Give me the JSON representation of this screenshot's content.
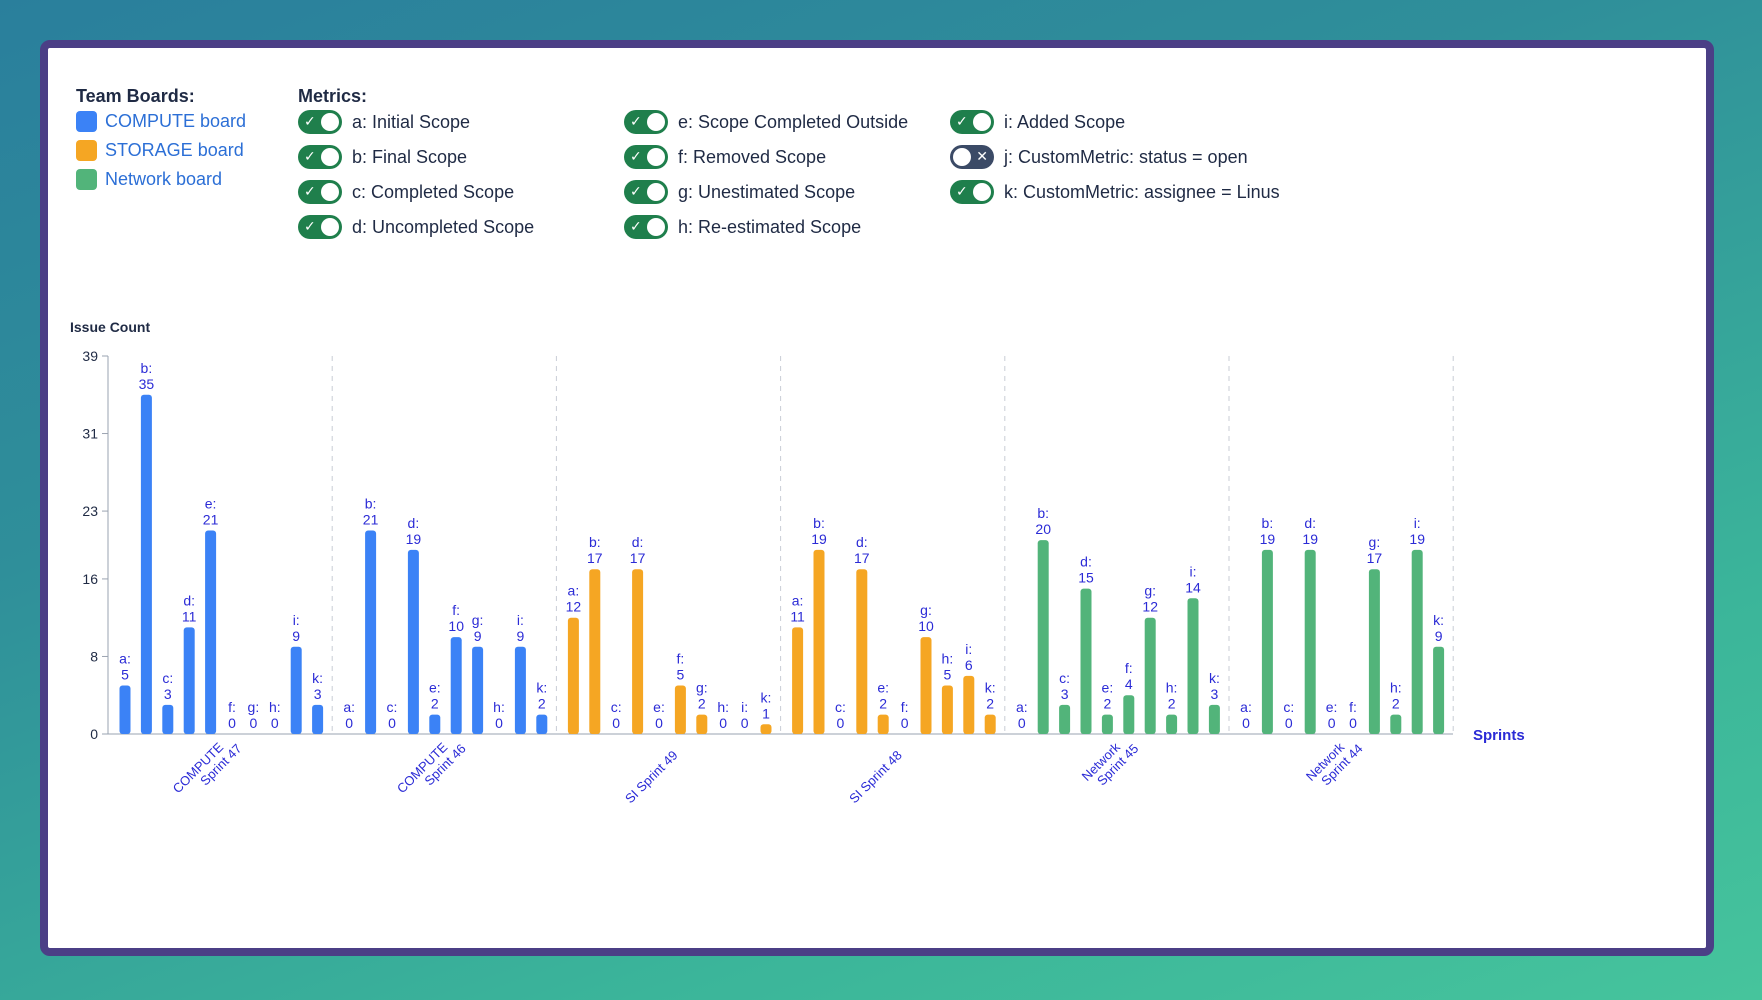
{
  "legend": {
    "boards_header": "Team Boards:",
    "boards": [
      {
        "label": "COMPUTE board",
        "color": "#3b82f6"
      },
      {
        "label": "STORAGE board",
        "color": "#f5a623"
      },
      {
        "label": "Network board",
        "color": "#52b47a"
      }
    ],
    "metrics_header": "Metrics:",
    "metrics": [
      {
        "label": "a: Initial Scope",
        "on": true
      },
      {
        "label": "b: Final Scope",
        "on": true
      },
      {
        "label": "c: Completed Scope",
        "on": true
      },
      {
        "label": "d: Uncompleted Scope",
        "on": true
      },
      {
        "label": "e: Scope Completed Outside",
        "on": true
      },
      {
        "label": "f: Removed Scope",
        "on": true
      },
      {
        "label": "g: Unestimated Scope",
        "on": true
      },
      {
        "label": "h: Re-estimated Scope",
        "on": true
      },
      {
        "label": "i: Added Scope",
        "on": true
      },
      {
        "label": "j: CustomMetric: status = open",
        "on": false
      },
      {
        "label": "k: CustomMetric: assignee = Linus",
        "on": true
      }
    ]
  },
  "chart_data": {
    "type": "bar",
    "ylabel": "Issue Count",
    "xlabel": "Sprints",
    "yticks": [
      0,
      8,
      16,
      23,
      31,
      39
    ],
    "ylim": [
      0,
      39
    ],
    "grid": "vertical dashed separators between sprints",
    "metric_keys": [
      "a",
      "b",
      "c",
      "d",
      "e",
      "f",
      "g",
      "h",
      "i",
      "k"
    ],
    "groups": [
      {
        "sprint": "COMPUTE Sprint 47",
        "board": "COMPUTE board",
        "bars": [
          {
            "key": "a",
            "value": 5
          },
          {
            "key": "b",
            "value": 35
          },
          {
            "key": "c",
            "value": 3
          },
          {
            "key": "d",
            "value": 11
          },
          {
            "key": "e",
            "value": 21
          },
          {
            "key": "f",
            "value": 0
          },
          {
            "key": "g",
            "value": 0
          },
          {
            "key": "h",
            "value": 0
          },
          {
            "key": "i",
            "value": 9
          },
          {
            "key": "k",
            "value": 3
          }
        ]
      },
      {
        "sprint": "COMPUTE Sprint 46",
        "board": "COMPUTE board",
        "bars": [
          {
            "key": "a",
            "value": 0
          },
          {
            "key": "b",
            "value": 21
          },
          {
            "key": "c",
            "value": 0
          },
          {
            "key": "d",
            "value": 19
          },
          {
            "key": "e",
            "value": 2
          },
          {
            "key": "f",
            "value": 10
          },
          {
            "key": "g",
            "value": 9
          },
          {
            "key": "h",
            "value": 0
          },
          {
            "key": "i",
            "value": 9
          },
          {
            "key": "k",
            "value": 2
          }
        ]
      },
      {
        "sprint": "SI Sprint 49",
        "board": "STORAGE board",
        "bars": [
          {
            "key": "a",
            "value": 12
          },
          {
            "key": "b",
            "value": 17
          },
          {
            "key": "c",
            "value": 0
          },
          {
            "key": "d",
            "value": 17
          },
          {
            "key": "e",
            "value": 0
          },
          {
            "key": "f",
            "value": 5
          },
          {
            "key": "g",
            "value": 2
          },
          {
            "key": "h",
            "value": 0
          },
          {
            "key": "i",
            "value": 0
          },
          {
            "key": "k",
            "value": 1
          }
        ]
      },
      {
        "sprint": "SI Sprint 48",
        "board": "STORAGE board",
        "bars": [
          {
            "key": "a",
            "value": 11
          },
          {
            "key": "b",
            "value": 19
          },
          {
            "key": "c",
            "value": 0
          },
          {
            "key": "d",
            "value": 17
          },
          {
            "key": "e",
            "value": 2
          },
          {
            "key": "f",
            "value": 0
          },
          {
            "key": "g",
            "value": 10
          },
          {
            "key": "h",
            "value": 5
          },
          {
            "key": "i",
            "value": 6
          },
          {
            "key": "k",
            "value": 2
          }
        ]
      },
      {
        "sprint": "Network Sprint 45",
        "board": "Network board",
        "bars": [
          {
            "key": "a",
            "value": 0
          },
          {
            "key": "b",
            "value": 20
          },
          {
            "key": "c",
            "value": 3
          },
          {
            "key": "d",
            "value": 15
          },
          {
            "key": "e",
            "value": 2
          },
          {
            "key": "f",
            "value": 4
          },
          {
            "key": "g",
            "value": 12
          },
          {
            "key": "h",
            "value": 2
          },
          {
            "key": "i",
            "value": 14
          },
          {
            "key": "k",
            "value": 3
          }
        ]
      },
      {
        "sprint": "Network Sprint 44",
        "board": "Network board",
        "bars": [
          {
            "key": "a",
            "value": 0
          },
          {
            "key": "b",
            "value": 19
          },
          {
            "key": "c",
            "value": 0
          },
          {
            "key": "d",
            "value": 19
          },
          {
            "key": "e",
            "value": 0
          },
          {
            "key": "f",
            "value": 0
          },
          {
            "key": "g",
            "value": 17
          },
          {
            "key": "h",
            "value": 2
          },
          {
            "key": "i",
            "value": 19
          },
          {
            "key": "k",
            "value": 9
          }
        ]
      }
    ]
  },
  "colors": {
    "label": "#2b2bd6",
    "axis": "#9aa3b0",
    "text": "#1f2a44"
  }
}
